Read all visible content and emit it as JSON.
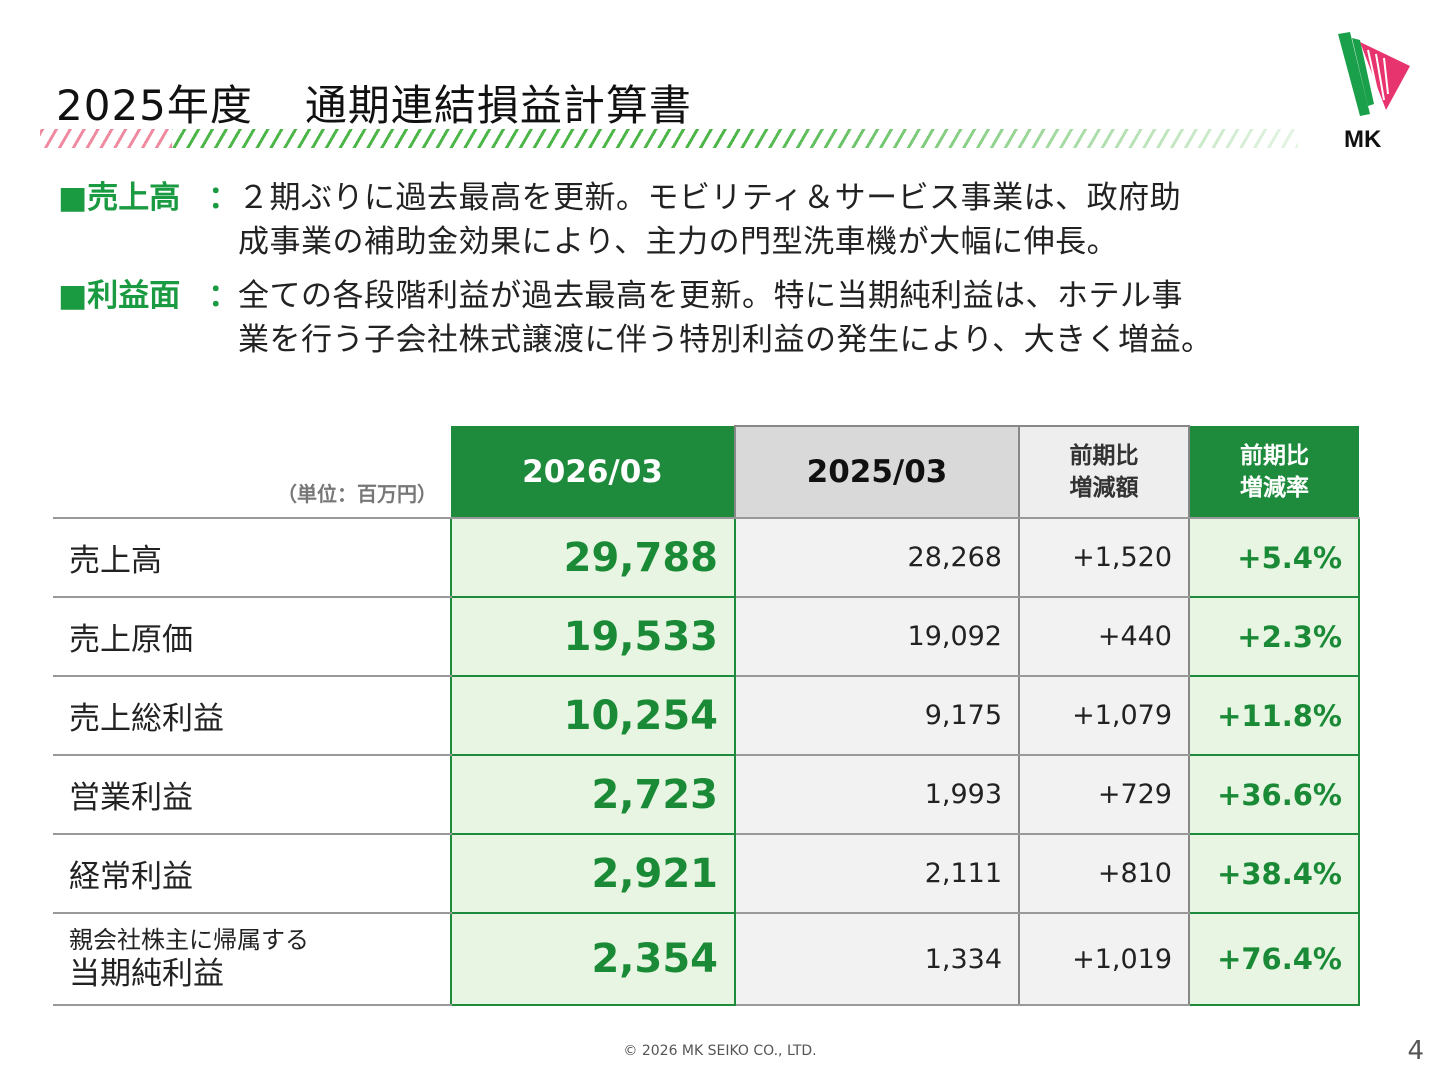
{
  "title": {
    "year": "2025年度",
    "text": "通期連結損益計算書"
  },
  "logo": {
    "text": "MK",
    "colors": {
      "green": "#1aa04a",
      "pink": "#e8346e"
    }
  },
  "summary": {
    "sales": {
      "heading": "■売上高",
      "separator": "：",
      "lines": [
        "２期ぶりに過去最高を更新。モビリティ＆サービス事業は、政府助",
        "成事業の補助金効果により、主力の門型洗車機が大幅に伸長。"
      ]
    },
    "profit": {
      "heading": "■利益面",
      "separator": "：",
      "lines": [
        "全ての各段階利益が過去最高を更新。特に当期純利益は、ホテル事",
        "業を行う子会社株式譲渡に伴う特別利益の発生により、大きく増益。"
      ]
    }
  },
  "table": {
    "unit": "（単位：百万円）",
    "headers": {
      "current": "2026/03",
      "previous": "2025/03",
      "diff": [
        "前期比",
        "増減額"
      ],
      "rate": [
        "前期比",
        "増減率"
      ]
    },
    "rows": [
      {
        "label": "売上高",
        "current": "29,788",
        "previous": "28,268",
        "diff": "+1,520",
        "rate": "+5.4%"
      },
      {
        "label": "売上原価",
        "current": "19,533",
        "previous": "19,092",
        "diff": "+440",
        "rate": "+2.3%"
      },
      {
        "label": "売上総利益",
        "current": "10,254",
        "previous": "9,175",
        "diff": "+1,079",
        "rate": "+11.8%"
      },
      {
        "label": "営業利益",
        "current": "2,723",
        "previous": "1,993",
        "diff": "+729",
        "rate": "+36.6%"
      },
      {
        "label": "経常利益",
        "current": "2,921",
        "previous": "2,111",
        "diff": "+810",
        "rate": "+38.4%"
      },
      {
        "label_sub": "親会社株主に帰属する",
        "label": "当期純利益",
        "current": "2,354",
        "previous": "1,334",
        "diff": "+1,019",
        "rate": "+76.4%"
      }
    ]
  },
  "footer": {
    "copyright": "© 2026 MK SEIKO CO., LTD.",
    "page_number": "4"
  },
  "colors": {
    "accent_green": "#1e8a3c",
    "highlight_text": "#1a8a37",
    "highlight_bg": "#e8f5e2",
    "previous_header_bg": "#d9d9d9",
    "stripe_pink": "#f08aa0",
    "stripe_green": "#4cb748"
  }
}
